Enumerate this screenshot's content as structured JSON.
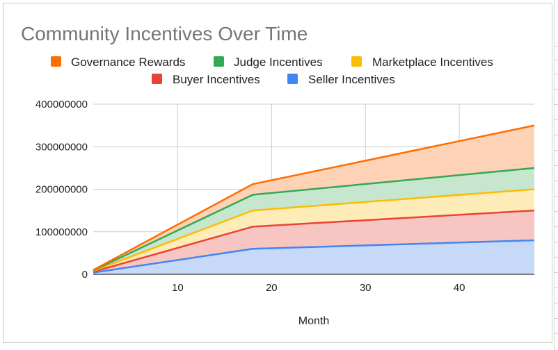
{
  "chart_data": {
    "type": "area",
    "stacked": true,
    "title": "Community Incentives Over Time",
    "xlabel": "Month",
    "ylabel": "",
    "xlim": [
      1,
      48
    ],
    "ylim": [
      0,
      400000000
    ],
    "grid": true,
    "legend_position": "top",
    "x_ticks": [
      10,
      20,
      30,
      40
    ],
    "y_ticks": [
      0,
      100000000,
      200000000,
      300000000,
      400000000
    ],
    "y_tick_labels": [
      "0",
      "100000000",
      "200000000",
      "300000000",
      "400000000"
    ],
    "x": [
      1,
      18,
      48
    ],
    "series": [
      {
        "name": "Seller Incentives",
        "color": "#4285f4",
        "fill": "#c6d9f8",
        "values": [
          4000000,
          60000000,
          80000000
        ]
      },
      {
        "name": "Buyer Incentives",
        "color": "#ea4335",
        "fill": "#f8c6c2",
        "values": [
          2000000,
          52000000,
          70000000
        ]
      },
      {
        "name": "Marketplace Incentives",
        "color": "#fbbc04",
        "fill": "#fdebb8",
        "values": [
          2000000,
          38000000,
          50000000
        ]
      },
      {
        "name": "Judge Incentives",
        "color": "#34a853",
        "fill": "#c6e6cf",
        "values": [
          1000000,
          37000000,
          50000000
        ]
      },
      {
        "name": "Governance Rewards",
        "color": "#ff6d01",
        "fill": "#fdd2b6",
        "values": [
          1000000,
          25000000,
          100000000
        ]
      }
    ],
    "legend_rows": [
      [
        "Governance Rewards",
        "Judge Incentives",
        "Marketplace Incentives"
      ],
      [
        "Buyer Incentives",
        "Seller Incentives"
      ]
    ]
  }
}
